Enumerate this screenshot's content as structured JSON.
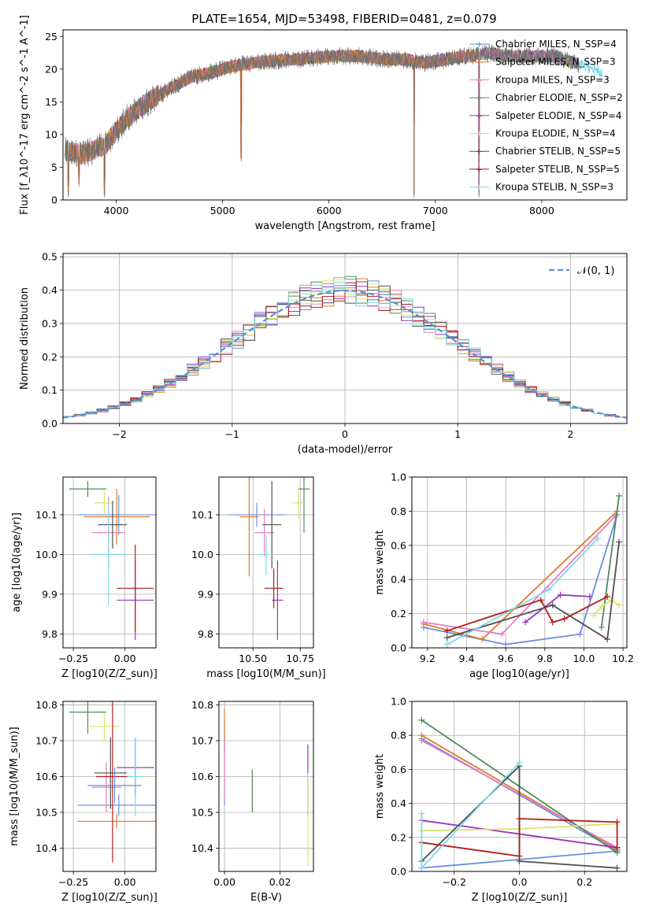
{
  "figure": {
    "title": "PLATE=1654, MJD=53498, FIBERID=0481, z=0.079"
  },
  "colors": {
    "chabrier_miles": "#6a8fe0",
    "salpeter_miles": "#e07a2a",
    "kroupa_miles": "#e57fc0",
    "chabrier_elodie": "#4f8a5c",
    "salpeter_elodie": "#9b36b8",
    "kroupa_elodie": "#d7e66a",
    "chabrier_stelib": "#505050",
    "salpeter_stelib": "#b01e1e",
    "kroupa_stelib": "#7fd8e6",
    "normal_curve": "#5b8fd6",
    "spectrum_main": "#707070"
  },
  "chart_data": [
    {
      "id": "spectrum",
      "type": "line",
      "xlabel": "wavelength [Angstrom, rest frame]",
      "ylabel": "Flux [f_λ10^-17 erg cm^-2 s^-1 A^-1]",
      "xlim": [
        3500,
        8800
      ],
      "ylim": [
        0,
        26
      ],
      "xticks": [
        4000,
        5000,
        6000,
        7000,
        8000
      ],
      "yticks": [
        0,
        5,
        10,
        15,
        20,
        25
      ],
      "grid": false,
      "legend_position": "upper-right",
      "legend": [
        "Chabrier MILES, N_SSP=4",
        "Salpeter MILES, N_SSP=3",
        "Kroupa MILES, N_SSP=3",
        "Chabrier ELODIE, N_SSP=2",
        "Salpeter ELODIE, N_SSP=4",
        "Kroupa ELODIE, N_SSP=4",
        "Chabrier STELIB, N_SSP=5",
        "Salpeter STELIB, N_SSP=5",
        "Kroupa STELIB, N_SSP=3"
      ],
      "continuum_x": [
        3520,
        3700,
        3900,
        4100,
        4300,
        4500,
        4700,
        4900,
        5100,
        5300,
        5500,
        5700,
        5900,
        6100,
        6300,
        6500,
        6700,
        6900,
        7100,
        7300,
        7500,
        7700,
        7900,
        8100,
        8300,
        8500,
        8570
      ],
      "continuum_y": [
        7.5,
        7.0,
        8.5,
        12.5,
        15.0,
        17.0,
        18.8,
        19.5,
        20.5,
        21.0,
        21.3,
        21.5,
        21.8,
        22.0,
        22.0,
        21.5,
        21.5,
        21.0,
        21.5,
        22.0,
        22.5,
        22.0,
        22.0,
        22.0,
        21.0,
        20.0,
        19.0
      ],
      "absorption_lines": [
        {
          "x": 3550,
          "y": 0.3
        },
        {
          "x": 3650,
          "y": 2.0
        },
        {
          "x": 3890,
          "y": 0.3
        },
        {
          "x": 5175,
          "y": 5.8
        },
        {
          "x": 6800,
          "y": 0.2
        },
        {
          "x": 7410,
          "y": 0.3
        }
      ]
    },
    {
      "id": "residuals",
      "type": "line",
      "xlabel": "(data-model)/error",
      "ylabel": "Normed distribution",
      "xlim": [
        -2.5,
        2.5
      ],
      "ylim": [
        0,
        0.51
      ],
      "xticks": [
        -2,
        -1,
        0,
        1,
        2
      ],
      "yticks": [
        0.0,
        0.1,
        0.2,
        0.3,
        0.4,
        0.5
      ],
      "grid": true,
      "legend_position": "upper-right",
      "legend": [
        "𝒩(0, 1)"
      ],
      "bin_width": 0.1,
      "n_bins": 50
    },
    {
      "id": "age_vs_z",
      "type": "scatter",
      "xlabel": "Z [log10(Z/Z_sun)]",
      "ylabel": "age [log10(age/yr)]",
      "xlim": [
        -0.3,
        0.15
      ],
      "ylim": [
        9.765,
        10.195
      ],
      "xticks": [
        -0.25,
        0.0
      ],
      "yticks": [
        9.8,
        9.9,
        10.0,
        10.1
      ],
      "grid": true,
      "points": [
        {
          "x": -0.03,
          "y": 10.1,
          "xerr": 0.2,
          "yerr": 0.05
        },
        {
          "x": -0.04,
          "y": 10.095,
          "xerr": 0.16,
          "yerr": 0.07
        },
        {
          "x": -0.08,
          "y": 10.055,
          "xerr": 0.08,
          "yerr": 0.09
        },
        {
          "x": -0.18,
          "y": 10.165,
          "xerr": 0.09,
          "yerr": 0.02
        },
        {
          "x": 0.05,
          "y": 9.885,
          "xerr": 0.09,
          "yerr": 0.1
        },
        {
          "x": -0.1,
          "y": 10.13,
          "xerr": 0.05,
          "yerr": 0.03
        },
        {
          "x": -0.06,
          "y": 10.075,
          "xerr": 0.07,
          "yerr": 0.06
        },
        {
          "x": 0.05,
          "y": 9.915,
          "xerr": 0.09,
          "yerr": 0.11
        },
        {
          "x": -0.08,
          "y": 10.0,
          "xerr": 0.09,
          "yerr": 0.13
        }
      ]
    },
    {
      "id": "age_vs_mass",
      "type": "scatter",
      "xlabel": "mass [log10(M/M_sun)]",
      "ylabel": "",
      "xlim": [
        10.32,
        10.82
      ],
      "ylim": [
        9.765,
        10.195
      ],
      "xticks": [
        10.5,
        10.75
      ],
      "yticks": [
        9.8,
        9.9,
        10.0,
        10.1
      ],
      "grid": true,
      "points": [
        {
          "x": 10.52,
          "y": 10.1,
          "xerr": 0.15,
          "yerr": 0.03
        },
        {
          "x": 10.48,
          "y": 10.095,
          "xerr": 0.05,
          "yerr": 0.15
        },
        {
          "x": 10.56,
          "y": 10.055,
          "xerr": 0.05,
          "yerr": 0.06
        },
        {
          "x": 10.77,
          "y": 10.165,
          "xerr": 0.03,
          "yerr": 0.11
        },
        {
          "x": 10.63,
          "y": 9.885,
          "xerr": 0.03,
          "yerr": 0.1
        },
        {
          "x": 10.74,
          "y": 10.13,
          "xerr": 0.03,
          "yerr": 0.04
        },
        {
          "x": 10.6,
          "y": 10.075,
          "xerr": 0.05,
          "yerr": 0.11
        },
        {
          "x": 10.61,
          "y": 9.915,
          "xerr": 0.05,
          "yerr": 0.05
        },
        {
          "x": 10.57,
          "y": 10.0,
          "xerr": 0.04,
          "yerr": 0.05
        }
      ]
    },
    {
      "id": "weight_vs_age",
      "type": "line",
      "xlabel": "age [log10(age/yr)]",
      "ylabel": "mass weight",
      "xlim": [
        9.12,
        10.22
      ],
      "ylim": [
        0.0,
        1.0
      ],
      "xticks": [
        9.2,
        9.4,
        9.6,
        9.8,
        10.0,
        10.2
      ],
      "yticks": [
        0.0,
        0.2,
        0.4,
        0.6,
        0.8,
        1.0
      ],
      "grid": true,
      "series": [
        {
          "color_key": "chabrier_miles",
          "x": [
            9.18,
            9.6,
            9.98,
            10.17
          ],
          "y": [
            0.12,
            0.02,
            0.08,
            0.78
          ]
        },
        {
          "color_key": "salpeter_miles",
          "x": [
            9.18,
            9.48,
            10.17
          ],
          "y": [
            0.14,
            0.05,
            0.8
          ]
        },
        {
          "color_key": "kroupa_miles",
          "x": [
            9.18,
            9.58,
            10.16
          ],
          "y": [
            0.15,
            0.08,
            0.77
          ]
        },
        {
          "color_key": "chabrier_elodie",
          "x": [
            10.09,
            10.18
          ],
          "y": [
            0.12,
            0.89
          ]
        },
        {
          "color_key": "salpeter_elodie",
          "x": [
            9.7,
            9.88,
            10.03
          ],
          "y": [
            0.15,
            0.31,
            0.3
          ]
        },
        {
          "color_key": "kroupa_elodie",
          "x": [
            10.05,
            10.09,
            10.14,
            10.18
          ],
          "y": [
            0.19,
            0.24,
            0.28,
            0.25
          ]
        },
        {
          "color_key": "chabrier_stelib",
          "x": [
            9.3,
            9.84,
            10.12,
            10.18
          ],
          "y": [
            0.06,
            0.25,
            0.05,
            0.62
          ]
        },
        {
          "color_key": "salpeter_stelib",
          "x": [
            9.3,
            9.78,
            9.84,
            9.9,
            10.12
          ],
          "y": [
            0.1,
            0.28,
            0.15,
            0.17,
            0.3
          ]
        },
        {
          "color_key": "kroupa_stelib",
          "x": [
            9.3,
            9.82,
            10.07
          ],
          "y": [
            0.02,
            0.34,
            0.64
          ]
        }
      ]
    },
    {
      "id": "mass_vs_z",
      "type": "scatter",
      "xlabel": "Z [log10(Z/Z_sun)]",
      "ylabel": "mass [log10(M/M_sun)]",
      "xlim": [
        -0.3,
        0.15
      ],
      "ylim": [
        10.335,
        10.81
      ],
      "xticks": [
        -0.25,
        0.0
      ],
      "yticks": [
        10.4,
        10.5,
        10.6,
        10.7,
        10.8
      ],
      "grid": true,
      "points": [
        {
          "x": -0.03,
          "y": 10.52,
          "xerr": 0.2,
          "yerr": 0.03
        },
        {
          "x": -0.04,
          "y": 10.475,
          "xerr": 0.19,
          "yerr": 0.02
        },
        {
          "x": -0.09,
          "y": 10.57,
          "xerr": 0.07,
          "yerr": 0.07
        },
        {
          "x": -0.18,
          "y": 10.78,
          "xerr": 0.09,
          "yerr": 0.06
        },
        {
          "x": 0.05,
          "y": 10.625,
          "xerr": 0.09,
          "yerr": 0.08
        },
        {
          "x": -0.1,
          "y": 10.74,
          "xerr": 0.07,
          "yerr": 0.04
        },
        {
          "x": -0.07,
          "y": 10.61,
          "xerr": 0.08,
          "yerr": 0.1
        },
        {
          "x": -0.06,
          "y": 10.6,
          "xerr": 0.08,
          "yerr": 0.24
        },
        {
          "x": 0.05,
          "y": 10.6,
          "xerr": 0.04,
          "yerr": 0.11
        },
        {
          "x": -0.05,
          "y": 10.575,
          "xerr": 0.13,
          "yerr": 0.05
        }
      ]
    },
    {
      "id": "mass_vs_ebv",
      "type": "scatter",
      "xlabel": "E(B-V)",
      "ylabel": "",
      "xlim": [
        -0.002,
        0.032
      ],
      "ylim": [
        10.335,
        10.81
      ],
      "xticks": [
        0.0,
        0.02
      ],
      "yticks": [
        10.4,
        10.5,
        10.6,
        10.7,
        10.8
      ],
      "grid": true,
      "points": [
        {
          "x": 0.0,
          "y": 10.64,
          "xerr": 0,
          "yerr": 0.12
        },
        {
          "x": 0.0,
          "y": 10.73,
          "xerr": 0,
          "yerr": 0.06
        },
        {
          "x": 0.0,
          "y": 10.62,
          "xerr": 0,
          "yerr": 0.08
        },
        {
          "x": 0.01,
          "y": 10.56,
          "xerr": 0,
          "yerr": 0.06
        },
        {
          "x": 0.03,
          "y": 10.59,
          "xerr": 0,
          "yerr": 0.1
        },
        {
          "x": 0.03,
          "y": 10.48,
          "xerr": 0,
          "yerr": 0.13
        }
      ]
    },
    {
      "id": "weight_vs_z",
      "type": "line",
      "xlabel": "Z [log10(Z/Z_sun)]",
      "ylabel": "mass weight",
      "xlim": [
        -0.33,
        0.33
      ],
      "ylim": [
        0.0,
        1.0
      ],
      "xticks": [
        -0.2,
        0.0,
        0.2
      ],
      "yticks": [
        0.0,
        0.2,
        0.4,
        0.6,
        0.8,
        1.0
      ],
      "grid": true,
      "series": [
        {
          "color_key": "chabrier_miles",
          "x": [
            -0.3,
            0.0,
            0.3
          ],
          "y": [
            0.02,
            0.07,
            0.12
          ]
        },
        {
          "color_key": "chabrier_miles",
          "x": [
            -0.3,
            0.3
          ],
          "y": [
            0.78,
            0.12
          ]
        },
        {
          "color_key": "salpeter_miles",
          "x": [
            -0.3,
            0.3
          ],
          "y": [
            0.8,
            0.13
          ]
        },
        {
          "color_key": "kroupa_miles",
          "x": [
            -0.3,
            0.3
          ],
          "y": [
            0.77,
            0.14
          ]
        },
        {
          "color_key": "chabrier_elodie",
          "x": [
            -0.3,
            0.3
          ],
          "y": [
            0.89,
            0.11
          ]
        },
        {
          "color_key": "salpeter_elodie",
          "x": [
            -0.3,
            0.3
          ],
          "y": [
            0.3,
            0.14
          ]
        },
        {
          "color_key": "kroupa_elodie",
          "x": [
            -0.3,
            0.0,
            0.3
          ],
          "y": [
            0.24,
            0.25,
            0.28
          ]
        },
        {
          "color_key": "chabrier_stelib",
          "x": [
            -0.3,
            0.0,
            0.0,
            0.3
          ],
          "y": [
            0.06,
            0.62,
            0.06,
            0.02
          ]
        },
        {
          "color_key": "salpeter_stelib",
          "x": [
            -0.3,
            0.0,
            0.0,
            0.3,
            0.3
          ],
          "y": [
            0.17,
            0.09,
            0.31,
            0.29,
            0.14
          ]
        },
        {
          "color_key": "kroupa_stelib",
          "x": [
            -0.3,
            -0.3,
            0.0
          ],
          "y": [
            0.34,
            0.02,
            0.64
          ]
        }
      ]
    }
  ]
}
